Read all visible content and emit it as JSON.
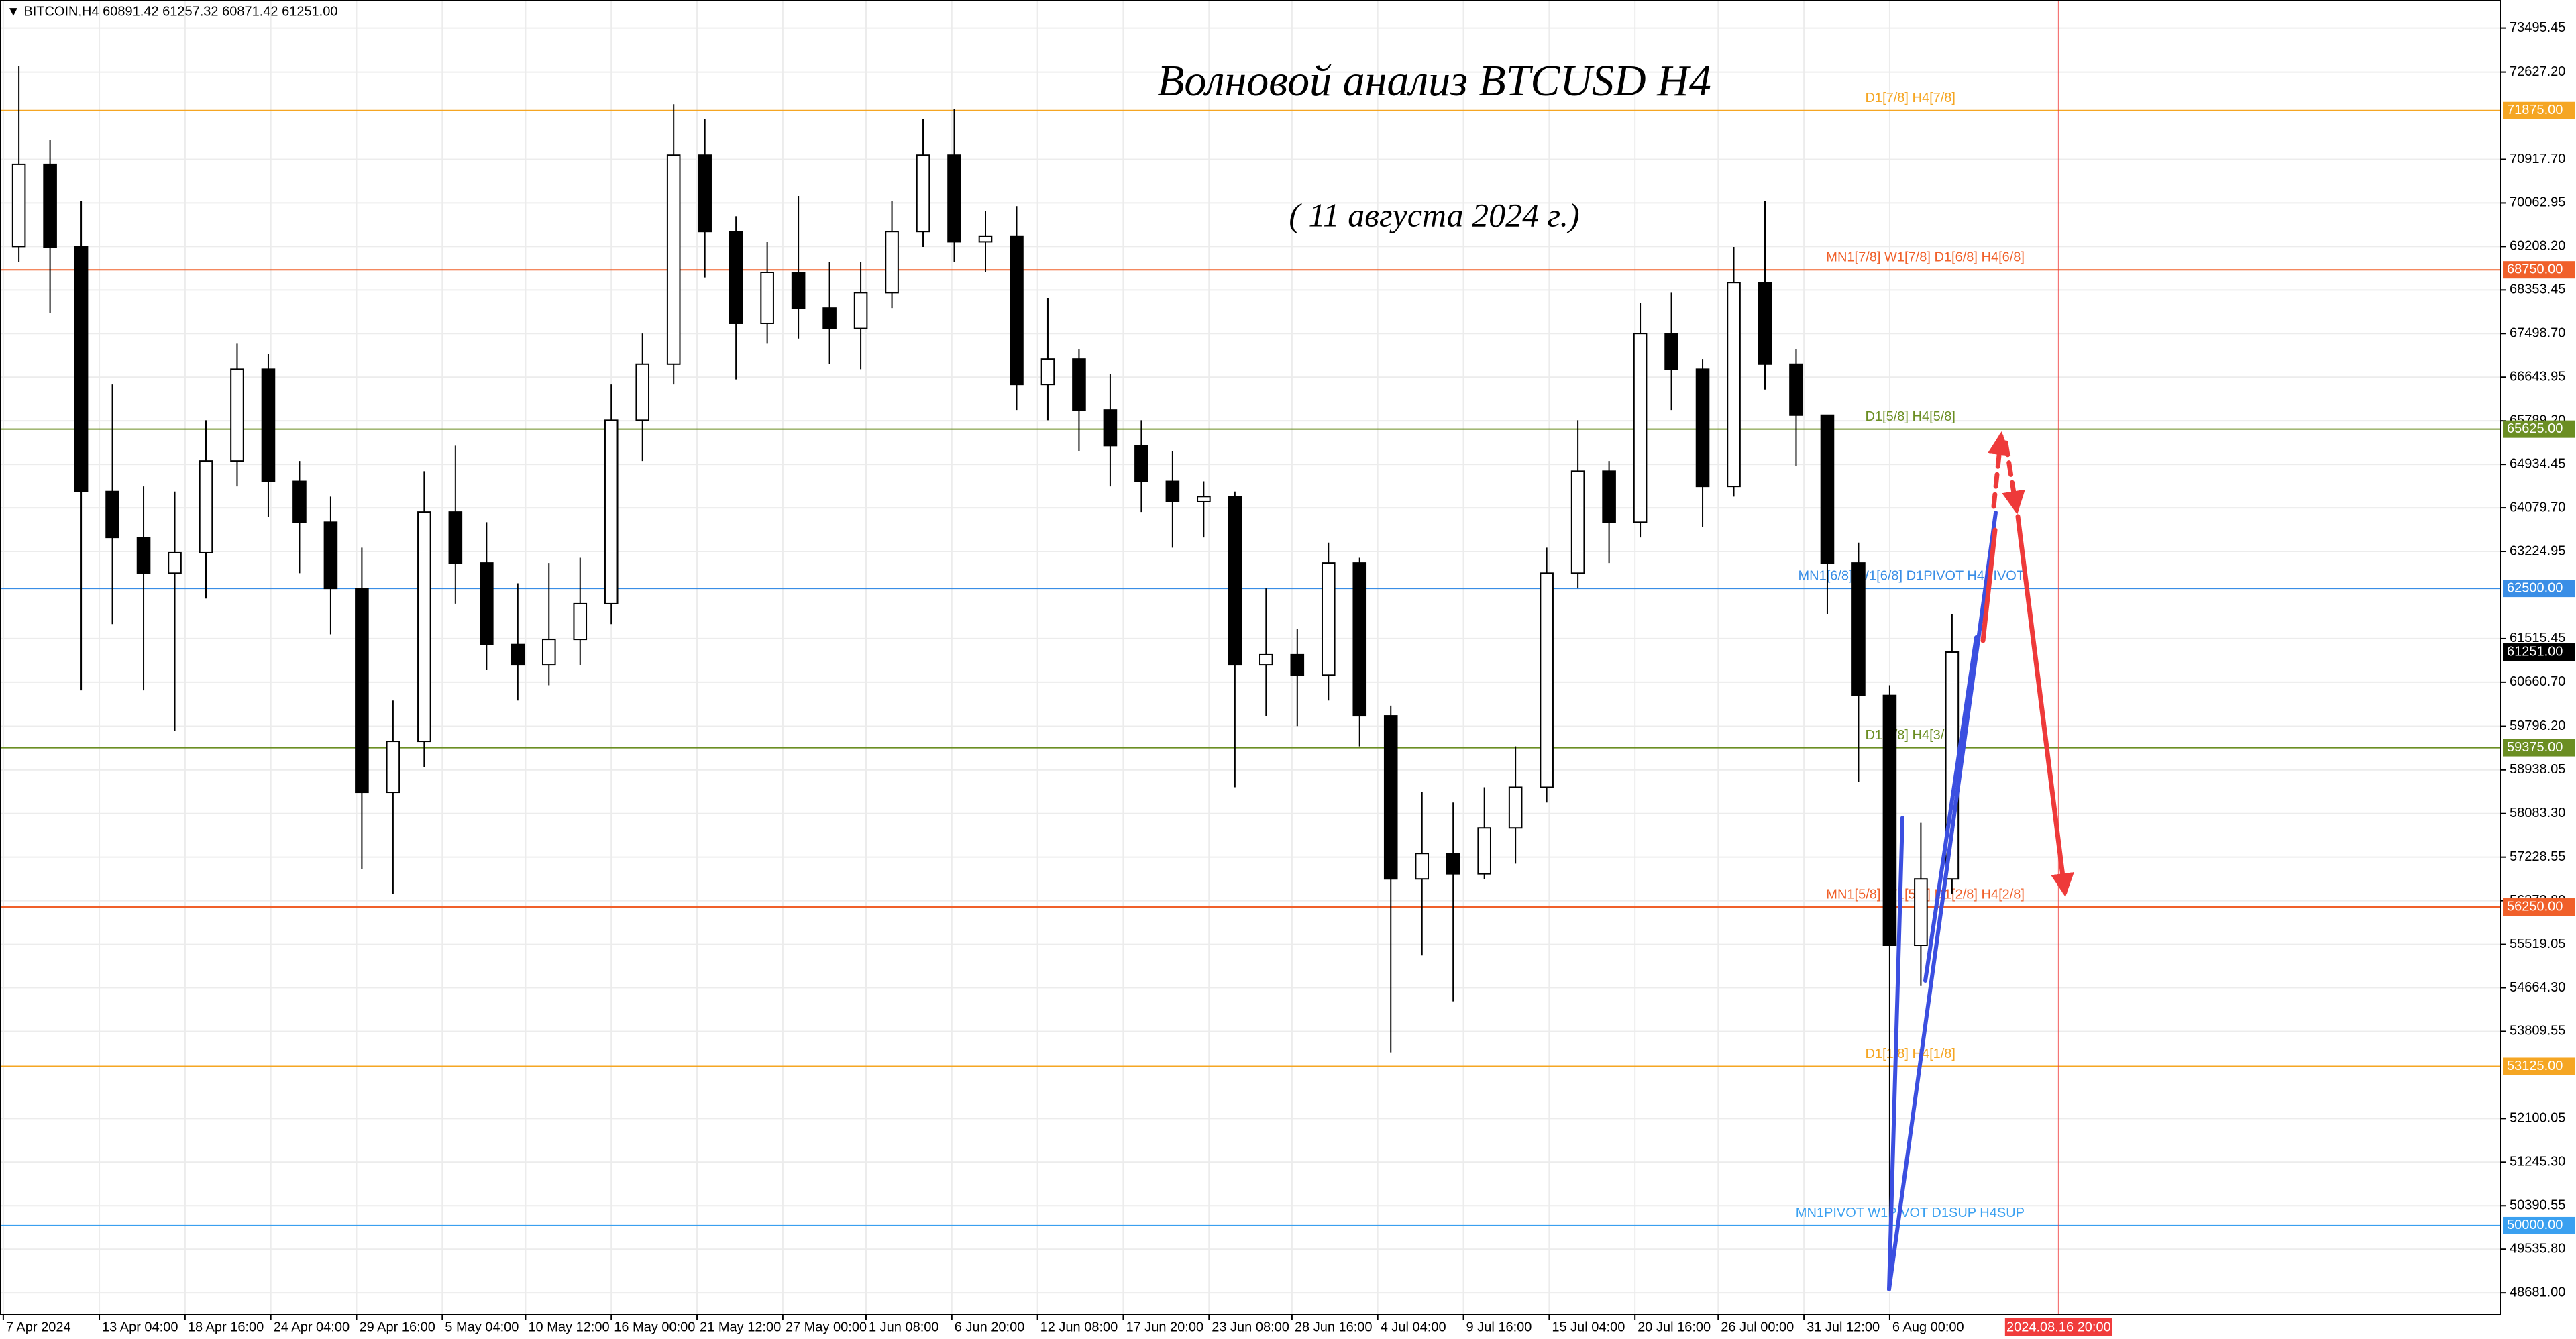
{
  "chart_data": {
    "type": "candlestick",
    "header": "▼ BITCOIN,H4  60891.42 61257.32 60871.42 61251.00",
    "title": "Волновой анализ BTCUSD H4",
    "subtitle": "( 11 августа 2024 г.)",
    "up_color": "#ffffff",
    "down_color": "#000000",
    "open": [
      69208,
      70820,
      69200,
      64400,
      63500,
      62800,
      63200,
      65000,
      66800,
      64600,
      63800,
      62500,
      58500,
      59500,
      64000,
      63000,
      61400,
      61000,
      61500,
      62200,
      65800,
      66900,
      71000,
      69500,
      67700,
      68700,
      68000,
      67600,
      68300,
      69500,
      71000,
      69300,
      69400,
      66500,
      67000,
      66000,
      65300,
      64600,
      64200,
      64300,
      61000,
      61200,
      60800,
      63000,
      60000,
      56800,
      57300,
      56900,
      57800,
      58600,
      62800,
      64800,
      63800,
      67500,
      66800,
      64500,
      68500,
      66900,
      65900,
      63000,
      60400,
      55500,
      56800
    ],
    "high": [
      72750,
      71300,
      70100,
      66500,
      64500,
      64400,
      65800,
      67300,
      67100,
      65000,
      64300,
      63300,
      60300,
      64800,
      65300,
      63800,
      62600,
      63000,
      63100,
      66500,
      67500,
      72000,
      71700,
      69800,
      69300,
      70200,
      68900,
      68900,
      70100,
      71700,
      71900,
      69900,
      70000,
      68200,
      67200,
      66700,
      65800,
      65200,
      64600,
      64400,
      62500,
      61700,
      63400,
      63100,
      60200,
      58500,
      58300,
      58600,
      59400,
      63300,
      65800,
      65000,
      68100,
      68300,
      67000,
      69200,
      70100,
      67200,
      65900,
      63400,
      60600,
      57900,
      62000
    ],
    "low": [
      68900,
      67900,
      60500,
      61800,
      60500,
      59700,
      62300,
      64500,
      63900,
      62800,
      61600,
      57000,
      56500,
      59000,
      62200,
      60900,
      60300,
      60600,
      61000,
      61800,
      65000,
      66500,
      68600,
      66600,
      67300,
      67400,
      66900,
      66800,
      68000,
      69200,
      68900,
      68700,
      66000,
      65800,
      65200,
      64500,
      64000,
      63300,
      63500,
      58600,
      60000,
      59800,
      60300,
      59400,
      53400,
      55300,
      54400,
      56800,
      57100,
      58300,
      62500,
      63000,
      63500,
      66000,
      63700,
      64300,
      66400,
      64900,
      62000,
      58700,
      49000,
      54700,
      56500
    ],
    "close": [
      70820,
      69200,
      64400,
      63500,
      62800,
      63200,
      65000,
      66800,
      64600,
      63800,
      62500,
      58500,
      59500,
      64000,
      63000,
      61400,
      61000,
      61500,
      62200,
      65800,
      66900,
      71000,
      69500,
      67700,
      68700,
      68000,
      67600,
      68300,
      69500,
      71000,
      69300,
      69400,
      66500,
      67000,
      66000,
      65300,
      64600,
      64200,
      64300,
      61000,
      61200,
      60800,
      63000,
      60000,
      56800,
      57300,
      56900,
      57800,
      58600,
      62800,
      64800,
      63800,
      67500,
      66800,
      64500,
      68500,
      66900,
      65900,
      63000,
      60400,
      55500,
      56800,
      61251
    ],
    "xlim": [
      -0.605,
      79.58
    ],
    "xticks": [
      {
        "value": -0.5,
        "label": "7 Apr 2024"
      },
      {
        "value": 2.58,
        "label": "13 Apr 04:00"
      },
      {
        "value": 5.33,
        "label": "18 Apr 16:00"
      },
      {
        "value": 8.08,
        "label": "24 Apr 04:00"
      },
      {
        "value": 10.83,
        "label": "29 Apr 16:00"
      },
      {
        "value": 13.58,
        "label": "5 May 04:00"
      },
      {
        "value": 16.25,
        "label": "10 May 12:00"
      },
      {
        "value": 19,
        "label": "16 May 00:00"
      },
      {
        "value": 21.75,
        "label": "21 May 12:00"
      },
      {
        "value": 24.5,
        "label": "27 May 00:00"
      },
      {
        "value": 27.17,
        "label": "1 Jun 08:00"
      },
      {
        "value": 29.92,
        "label": "6 Jun 20:00"
      },
      {
        "value": 32.67,
        "label": "12 Jun 08:00"
      },
      {
        "value": 35.42,
        "label": "17 Jun 20:00"
      },
      {
        "value": 38.17,
        "label": "23 Jun 08:00"
      },
      {
        "value": 40.83,
        "label": "28 Jun 16:00"
      },
      {
        "value": 43.58,
        "label": "4 Jul 04:00"
      },
      {
        "value": 46.33,
        "label": "9 Jul 16:00"
      },
      {
        "value": 49.08,
        "label": "15 Jul 04:00"
      },
      {
        "value": 51.83,
        "label": "20 Jul 16:00"
      },
      {
        "value": 54.5,
        "label": "26 Jul 00:00"
      },
      {
        "value": 57.25,
        "label": "31 Jul 12:00"
      },
      {
        "value": 60,
        "label": "6 Aug 00:00"
      }
    ],
    "ylim": [
      48262,
      74043
    ],
    "yticks": [
      {
        "value": 73495.45,
        "label": "73495.45"
      },
      {
        "value": 72627.2,
        "label": "72627.20"
      },
      {
        "value": 70917.7,
        "label": "70917.70"
      },
      {
        "value": 70062.95,
        "label": "70062.95"
      },
      {
        "value": 69208.2,
        "label": "69208.20"
      },
      {
        "value": 68353.45,
        "label": "68353.45"
      },
      {
        "value": 67498.7,
        "label": "67498.70"
      },
      {
        "value": 66643.95,
        "label": "66643.95"
      },
      {
        "value": 65789.2,
        "label": "65789.20"
      },
      {
        "value": 64934.45,
        "label": "64934.45"
      },
      {
        "value": 64079.7,
        "label": "64079.70"
      },
      {
        "value": 63224.95,
        "label": "63224.95"
      },
      {
        "value": 61515.45,
        "label": "61515.45"
      },
      {
        "value": 60660.7,
        "label": "60660.70"
      },
      {
        "value": 59796.2,
        "label": "59796.20"
      },
      {
        "value": 58938.05,
        "label": "58938.05"
      },
      {
        "value": 58083.3,
        "label": "58083.30"
      },
      {
        "value": 57228.55,
        "label": "57228.55"
      },
      {
        "value": 56373.8,
        "label": "56373.80"
      },
      {
        "value": 55519.05,
        "label": "55519.05"
      },
      {
        "value": 54664.3,
        "label": "54664.30"
      },
      {
        "value": 53809.55,
        "label": "53809.55"
      },
      {
        "value": 52100.05,
        "label": "52100.05"
      },
      {
        "value": 51245.3,
        "label": "51245.30"
      },
      {
        "value": 50390.55,
        "label": "50390.55"
      },
      {
        "value": 49535.8,
        "label": "49535.80"
      },
      {
        "value": 48681,
        "label": "48681.00"
      }
    ],
    "grid": true,
    "levels": [
      {
        "value": 71875,
        "value_label": "71875.00",
        "label": "D1[7/8] H4[7/8]",
        "color": "#f5a623"
      },
      {
        "value": 68750,
        "value_label": "68750.00",
        "label": "MN1[7/8] W1[7/8] D1[6/8] H4[6/8]",
        "color": "#f0602a"
      },
      {
        "value": 65625,
        "value_label": "65625.00",
        "label": "D1[5/8] H4[5/8]",
        "color": "#6b8e23"
      },
      {
        "value": 62500,
        "value_label": "62500.00",
        "label": "MN1[6/8] W1[6/8] D1PIVOT H4PIVOT",
        "color": "#3a8ee6"
      },
      {
        "value": 59375,
        "value_label": "59375.00",
        "label": "D1[3/8] H4[3/8]",
        "color": "#6b8e23"
      },
      {
        "value": 56250,
        "value_label": "56250.00",
        "label": "MN1[5/8] W1[5/8] D1[2/8] H4[2/8]",
        "color": "#f0602a"
      },
      {
        "value": 53125,
        "value_label": "53125.00",
        "label": "D1[1/8] H4[1/8]",
        "color": "#f5a623"
      },
      {
        "value": 50000,
        "value_label": "50000.00",
        "label": "MN1PIVOT W1PIVOT D1SUP H4SUP",
        "color": "#3aa0f0"
      }
    ],
    "last_price": {
      "value": 61251,
      "label": "61251.00"
    },
    "marker": {
      "value": 65.42,
      "label": "2024.08.16 20:00",
      "color": "#f03c3c"
    }
  }
}
